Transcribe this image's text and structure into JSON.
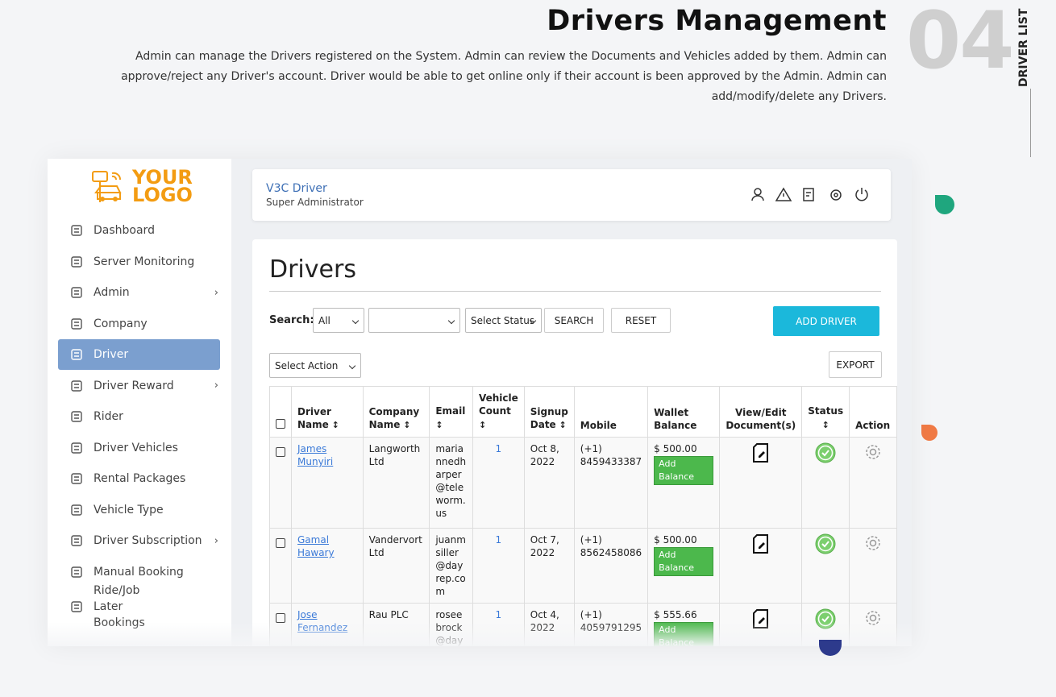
{
  "header": {
    "title": "Drivers Management",
    "number": "04",
    "side_label": "DRIVER LIST",
    "description": "Admin can manage the Drivers registered on the System. Admin can review the Documents and Vehicles added by them. Admin can approve/reject any Driver's account. Driver would be able to get online only if their account is been approved by the Admin. Admin can add/modify/delete any Drivers."
  },
  "logo": {
    "line1": "YOUR",
    "line2": "LOGO"
  },
  "sidebar": {
    "items": [
      {
        "label": "Dashboard"
      },
      {
        "label": "Server Monitoring"
      },
      {
        "label": "Admin",
        "has_submenu": true
      },
      {
        "label": "Company"
      },
      {
        "label": "Driver",
        "active": true
      },
      {
        "label": "Driver Reward",
        "has_submenu": true
      },
      {
        "label": "Rider"
      },
      {
        "label": "Driver Vehicles"
      },
      {
        "label": "Rental Packages"
      },
      {
        "label": "Vehicle Type"
      },
      {
        "label": "Driver Subscription",
        "has_submenu": true
      },
      {
        "label": "Manual Booking"
      },
      {
        "label": "Ride/Job Later Bookings"
      }
    ]
  },
  "topbar": {
    "user": "V3C Driver",
    "role": "Super Administrator"
  },
  "panel": {
    "title": "Drivers",
    "search_label": "Search:",
    "search_option": "All",
    "status_placeholder": "Select Status",
    "search_button": "SEARCH",
    "reset_button": "RESET",
    "add_button": "ADD DRIVER",
    "action_select": "Select Action",
    "export_button": "EXPORT"
  },
  "table": {
    "columns": [
      "Driver Name",
      "Company Name",
      "Email",
      "Vehicle Count",
      "Signup Date",
      "Mobile",
      "Wallet Balance",
      "View/Edit Document(s)",
      "Status",
      "Action"
    ],
    "add_balance_label": "Add Balance",
    "rows": [
      {
        "name": "James Munyiri",
        "company": "Langworth Ltd",
        "email": "mariannedharper@teleworm.us",
        "vehicles": 1,
        "date": "Oct 8, 2022",
        "mobile": "(+1) 8459433387",
        "balance": "$ 500.00"
      },
      {
        "name": "Gamal Hawary",
        "company": "Vandervort Ltd",
        "email": "juanmsiller@dayrep.com",
        "vehicles": 1,
        "date": "Oct 7, 2022",
        "mobile": "(+1) 8562458086",
        "balance": "$ 500.00"
      },
      {
        "name": "Jose Fernandez",
        "company": "Rau PLC",
        "email": "roseebrock@dayrep.com",
        "vehicles": 1,
        "date": "Oct 4, 2022",
        "mobile": "(+1) 4059791295",
        "balance": "$ 555.66"
      }
    ]
  }
}
